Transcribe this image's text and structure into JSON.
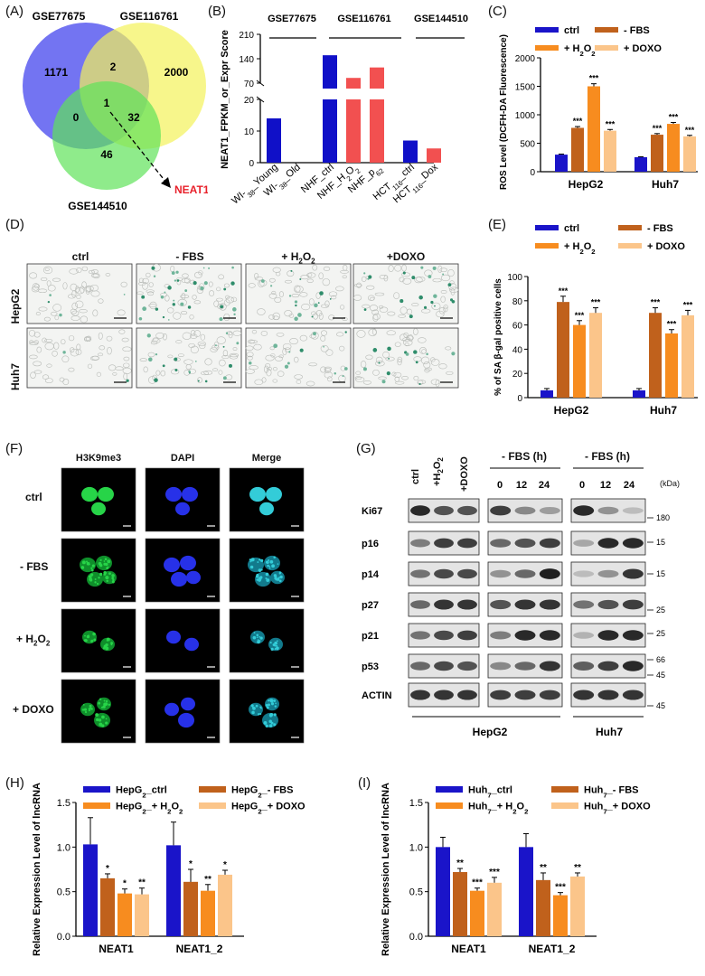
{
  "panels": {
    "A": "(A)",
    "B": "(B)",
    "C": "(C)",
    "D": "(D)",
    "E": "(E)",
    "F": "(F)",
    "G": "(G)",
    "H": "(H)",
    "I": "(I)"
  },
  "venn": {
    "sets": [
      "GSE77675",
      "GSE116761",
      "GSE144510"
    ],
    "colors": [
      "#5b5cf0",
      "#f4f25a",
      "#5fe35a"
    ],
    "regions": {
      "only_a": "1171",
      "ab": "2",
      "only_b": "2000",
      "abc": "1",
      "ac": "0",
      "bc": "32",
      "only_c": "46"
    },
    "highlight": "NEAT1",
    "highlight_color": "#e8212b"
  },
  "chart_data": [
    {
      "id": "B",
      "type": "bar",
      "ylabel": "NEAT1_FPKM_or_Expr Score",
      "groups": [
        "GSE77675",
        "GSE116761",
        "GSE144510"
      ],
      "categories": [
        "WI-38_Young",
        "WI-38_Old",
        "NHF_ctrl",
        "NHF_H2O2",
        "NHF_p62",
        "HCT116_ctrl",
        "HCT116_Dox"
      ],
      "values": [
        14,
        0,
        150,
        85,
        115,
        7,
        4.5
      ],
      "colors": [
        "#1010c8",
        "#1010c8",
        "#1010c8",
        "#f25050",
        "#f25050",
        "#1010c8",
        "#f25050"
      ],
      "yticks_lower": [
        "0",
        "10",
        "20"
      ],
      "yticks_upper": [
        "70",
        "140",
        "210"
      ],
      "axis_break": [
        20,
        70
      ]
    },
    {
      "id": "C",
      "type": "bar",
      "ylabel": "ROS Level (DCFH-DA Fluorescence)",
      "categories": [
        "HepG2",
        "Huh7"
      ],
      "series": [
        {
          "name": "ctrl",
          "values": [
            300,
            255
          ],
          "color": "#1a14c9"
        },
        {
          "name": "- FBS",
          "values": [
            770,
            650
          ],
          "color": "#c0611c"
        },
        {
          "name": "+ H2O2",
          "values": [
            1500,
            840
          ],
          "color": "#f78c1f"
        },
        {
          "name": "+ DOXO",
          "values": [
            720,
            620
          ],
          "color": "#fbc58a"
        }
      ],
      "significance": [
        [
          "",
          "***",
          "***",
          "***"
        ],
        [
          "",
          "***",
          "***",
          "***"
        ]
      ],
      "ylim": [
        0,
        2000
      ],
      "yticks": [
        "0",
        "500",
        "1000",
        "1500",
        "2000"
      ]
    },
    {
      "id": "E",
      "type": "bar",
      "ylabel": "% of SA β-gal positive cells",
      "categories": [
        "HepG2",
        "Huh7"
      ],
      "series": [
        {
          "name": "ctrl",
          "values": [
            6,
            6
          ],
          "color": "#1a14c9"
        },
        {
          "name": "- FBS",
          "values": [
            79,
            70
          ],
          "color": "#c0611c"
        },
        {
          "name": "+ H2O2",
          "values": [
            60,
            53
          ],
          "color": "#f78c1f"
        },
        {
          "name": "+ DOXO",
          "values": [
            70,
            68
          ],
          "color": "#fbc58a"
        }
      ],
      "significance": [
        [
          "",
          "***",
          "***",
          "***"
        ],
        [
          "",
          "***",
          "***",
          "***"
        ]
      ],
      "ylim": [
        0,
        100
      ],
      "yticks": [
        "0",
        "20",
        "40",
        "60",
        "80",
        "100"
      ]
    },
    {
      "id": "H",
      "type": "bar",
      "ylabel": "Relative Expression Level of lncRNA",
      "categories": [
        "NEAT1",
        "NEAT1_2"
      ],
      "series": [
        {
          "name": "HepG2_ctrl",
          "values": [
            1.03,
            1.02
          ],
          "err": [
            0.3,
            0.26
          ],
          "color": "#1a14c9"
        },
        {
          "name": "HepG2_- FBS",
          "values": [
            0.65,
            0.61
          ],
          "err": [
            0.05,
            0.14
          ],
          "color": "#c0611c"
        },
        {
          "name": "HepG2_+ H2O2",
          "values": [
            0.48,
            0.51
          ],
          "err": [
            0.05,
            0.07
          ],
          "color": "#f78c1f"
        },
        {
          "name": "HepG2_+ DOXO",
          "values": [
            0.47,
            0.69
          ],
          "err": [
            0.07,
            0.05
          ],
          "color": "#fbc58a"
        }
      ],
      "significance": [
        [
          "",
          "*",
          "*",
          "**"
        ],
        [
          "",
          "*",
          "**",
          "*"
        ]
      ],
      "ylim": [
        0,
        1.5
      ],
      "yticks": [
        "0.0",
        "0.5",
        "1.0",
        "1.5"
      ]
    },
    {
      "id": "I",
      "type": "bar",
      "ylabel": "Relative Expression Level of lncRNA",
      "categories": [
        "NEAT1",
        "NEAT1_2"
      ],
      "series": [
        {
          "name": "Huh7_ctrl",
          "values": [
            1.0,
            1.0
          ],
          "err": [
            0.11,
            0.15
          ],
          "color": "#1a14c9"
        },
        {
          "name": "Huh7_- FBS",
          "values": [
            0.72,
            0.63
          ],
          "err": [
            0.04,
            0.08
          ],
          "color": "#c0611c"
        },
        {
          "name": "Huh7_+ H2O2",
          "values": [
            0.51,
            0.46
          ],
          "err": [
            0.03,
            0.03
          ],
          "color": "#f78c1f"
        },
        {
          "name": "Huh7_+ DOXO",
          "values": [
            0.6,
            0.67
          ],
          "err": [
            0.06,
            0.04
          ],
          "color": "#fbc58a"
        }
      ],
      "significance": [
        [
          "",
          "**",
          "***",
          "***"
        ],
        [
          "",
          "**",
          "***",
          "**"
        ]
      ],
      "ylim": [
        0,
        1.5
      ],
      "yticks": [
        "0.0",
        "0.5",
        "1.0",
        "1.5"
      ]
    }
  ],
  "micro_d": {
    "columns": [
      "ctrl",
      "- FBS",
      "+ H2O2",
      "+DOXO"
    ],
    "rows": [
      "HepG2",
      "Huh7"
    ]
  },
  "micro_f": {
    "columns": [
      "H3K9me3",
      "DAPI",
      "Merge"
    ],
    "rows": [
      "ctrl",
      "- FBS",
      "+ H2O2",
      "+ DOXO"
    ]
  },
  "blot_g": {
    "left_lanes": [
      "ctrl",
      "+H2O2",
      "+DOXO"
    ],
    "fbs_title": "- FBS (h)",
    "time_lanes": [
      "0",
      "12",
      "24"
    ],
    "kda_label": "(kDa)",
    "proteins": [
      "Ki67",
      "p16",
      "p14",
      "p27",
      "p21",
      "p53",
      "ACTIN"
    ],
    "markers": [
      "180",
      "15",
      "15",
      "25",
      "25",
      "66",
      "45",
      "45"
    ],
    "cell_lines": [
      "HepG2",
      "Huh7"
    ]
  }
}
